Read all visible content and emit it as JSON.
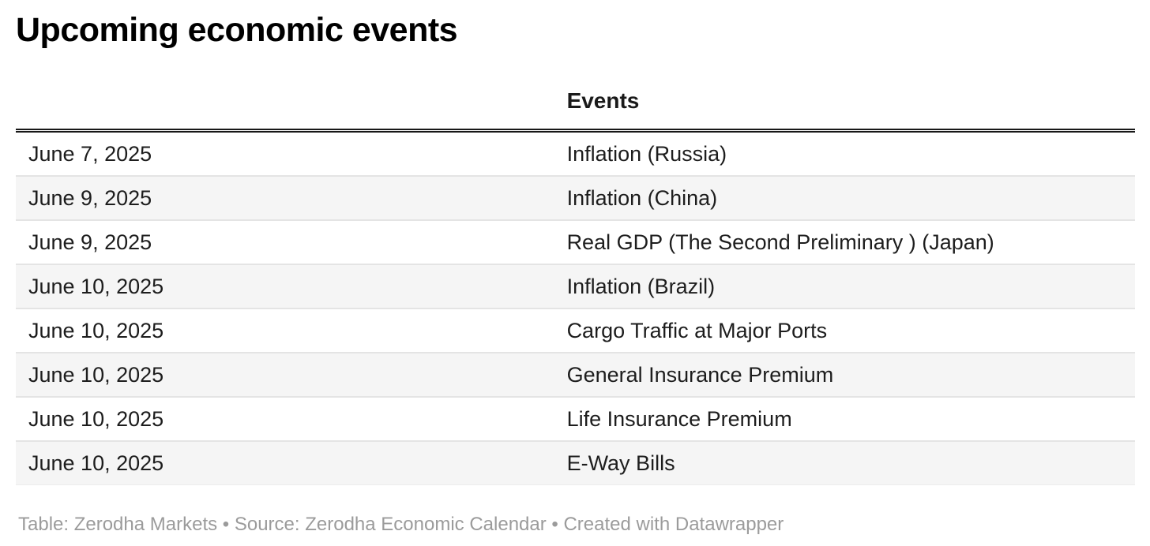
{
  "title": "Upcoming economic events",
  "table": {
    "columns": {
      "date_header": "",
      "events_header": "Events"
    },
    "rows": [
      {
        "date": "June 7, 2025",
        "event": "Inflation (Russia)"
      },
      {
        "date": "June 9, 2025",
        "event": "Inflation (China)"
      },
      {
        "date": "June 9, 2025",
        "event": "Real GDP (The Second Preliminary ) (Japan)"
      },
      {
        "date": "June 10, 2025",
        "event": "Inflation (Brazil)"
      },
      {
        "date": "June 10, 2025",
        "event": "Cargo Traffic at Major Ports"
      },
      {
        "date": "June 10, 2025",
        "event": "General Insurance Premium"
      },
      {
        "date": "June 10, 2025",
        "event": "Life Insurance Premium"
      },
      {
        "date": "June 10, 2025",
        "event": "E-Way Bills"
      }
    ]
  },
  "footer": {
    "text": "Table: Zerodha Markets • Source: Zerodha Economic Calendar • Created with Datawrapper"
  },
  "colors": {
    "background": "#ffffff",
    "title_text": "#000000",
    "body_text": "#1d1d1d",
    "header_rule": "#171717",
    "row_divider": "#e4e4e4",
    "zebra_row_bg": "#f5f5f5",
    "footer_text": "#9b9b9b"
  },
  "chart_data": {
    "type": "table",
    "title": "Upcoming economic events",
    "columns": [
      "",
      "Events"
    ],
    "rows": [
      [
        "June 7, 2025",
        "Inflation (Russia)"
      ],
      [
        "June 9, 2025",
        "Inflation (China)"
      ],
      [
        "June 9, 2025",
        "Real GDP (The Second Preliminary ) (Japan)"
      ],
      [
        "June 10, 2025",
        "Inflation (Brazil)"
      ],
      [
        "June 10, 2025",
        "Cargo Traffic at Major Ports"
      ],
      [
        "June 10, 2025",
        "General Insurance Premium"
      ],
      [
        "June 10, 2025",
        "Life Insurance Premium"
      ],
      [
        "June 10, 2025",
        "E-Way Bills"
      ]
    ],
    "notes": "Table: Zerodha Markets • Source: Zerodha Economic Calendar • Created with Datawrapper",
    "layout": {
      "zebra_striping": true,
      "header_rule": "double black line",
      "grid": "horizontal row dividers only"
    }
  }
}
